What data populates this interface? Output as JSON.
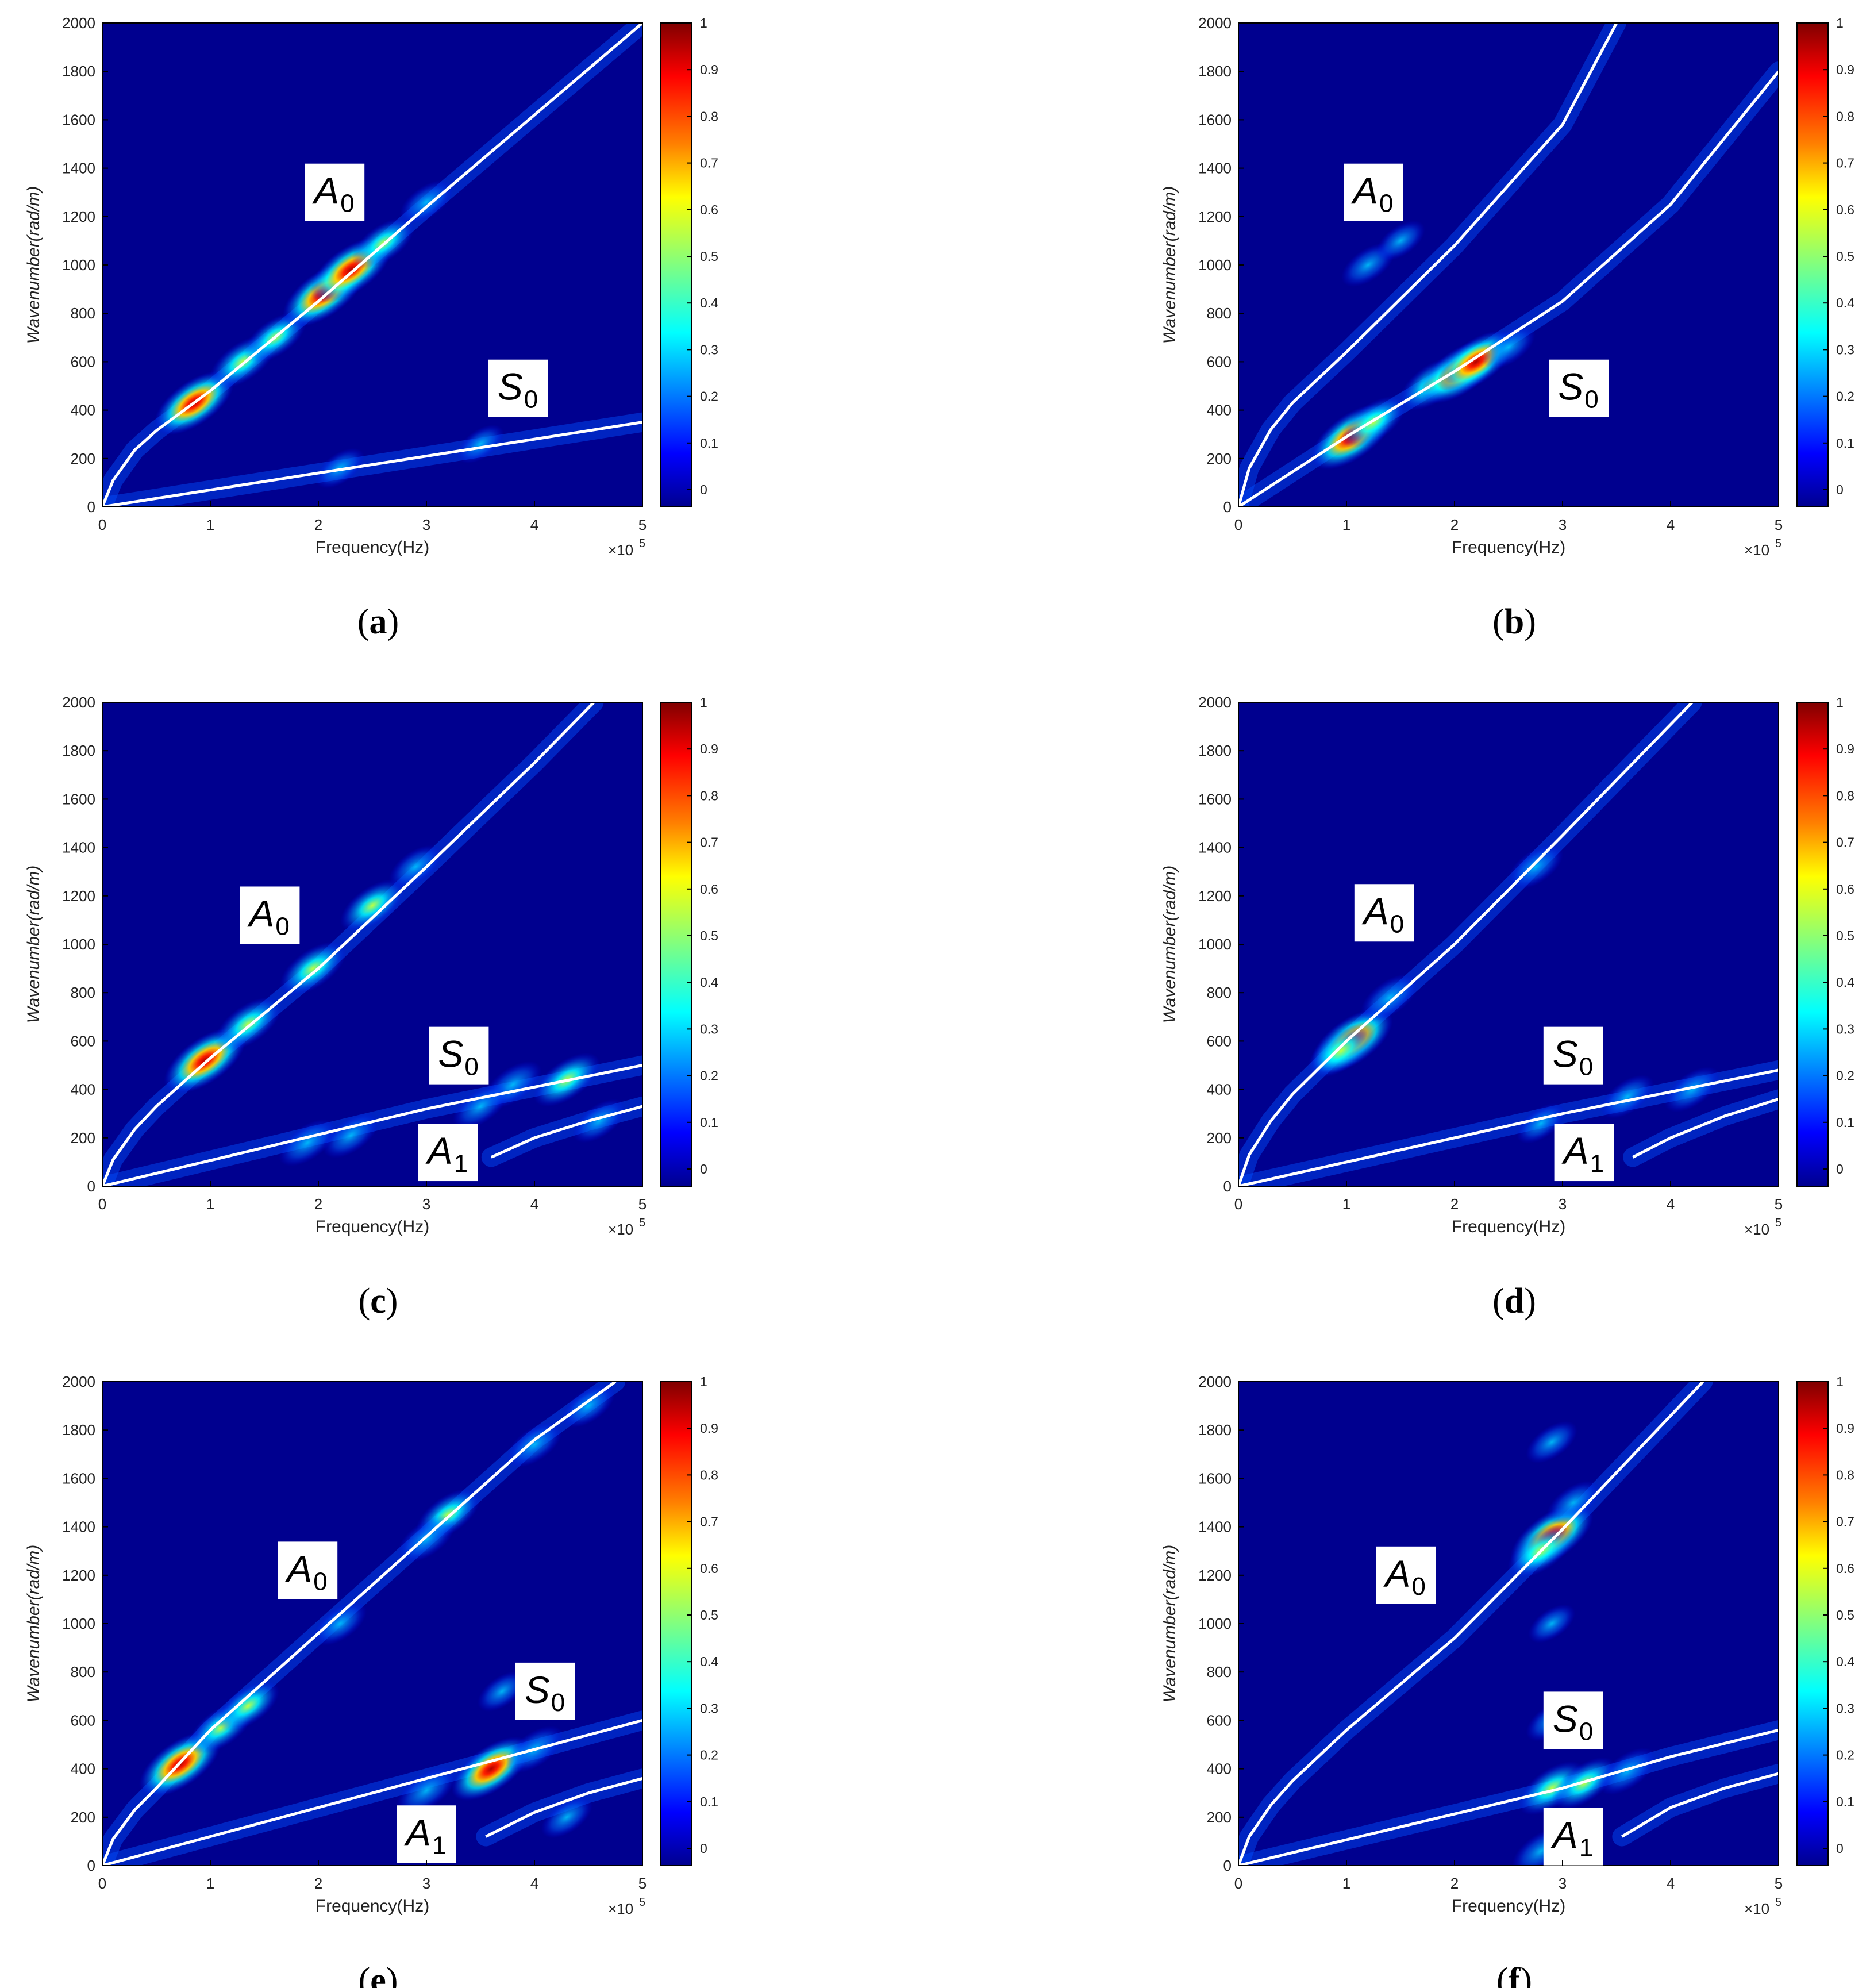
{
  "colors": {
    "background": "#ffffff",
    "plot_background": "#00008f",
    "curve": "#ffffff",
    "label_box": "#ffffff",
    "colormap": [
      "#00008f",
      "#0000ff",
      "#0080ff",
      "#00ffff",
      "#80ff80",
      "#ffff00",
      "#ff8000",
      "#ff0000",
      "#800000"
    ]
  },
  "common": {
    "xlabel": "Frequency(Hz)",
    "ylabel": "Wavenumber(rad/m)",
    "x_exponent_label": "×10",
    "x_exponent_power": "5",
    "x_ticks": [
      "0",
      "1",
      "2",
      "3",
      "4",
      "5"
    ],
    "y_ticks": [
      "0",
      "200",
      "400",
      "600",
      "800",
      "1000",
      "1200",
      "1400",
      "1600",
      "1800",
      "2000"
    ],
    "colorbar_ticks": [
      "0",
      "0.1",
      "0.2",
      "0.3",
      "0.4",
      "0.5",
      "0.6",
      "0.7",
      "0.8",
      "0.9",
      "1"
    ]
  },
  "chart_data": [
    {
      "type": "heatmap",
      "caption_letter": "a",
      "xlim": [
        0,
        5
      ],
      "ylim": [
        0,
        2000
      ],
      "curves": [
        {
          "mode": "A",
          "sub": "0",
          "x": [
            0,
            0.1,
            0.3,
            0.5,
            1,
            2,
            3,
            4,
            5
          ],
          "y": [
            0,
            110,
            235,
            315,
            480,
            850,
            1240,
            1620,
            2000
          ]
        },
        {
          "mode": "S",
          "sub": "0",
          "x": [
            0,
            5
          ],
          "y": [
            0,
            350
          ]
        }
      ],
      "labels": [
        {
          "mode": "A",
          "sub": "0",
          "x": 2.15,
          "y": 1300
        },
        {
          "mode": "S",
          "sub": "0",
          "x": 3.85,
          "y": 490
        }
      ],
      "hotspots": [
        {
          "x": 0.85,
          "y": 430,
          "v": 0.9
        },
        {
          "x": 1.3,
          "y": 600,
          "v": 0.6
        },
        {
          "x": 1.6,
          "y": 700,
          "v": 0.5
        },
        {
          "x": 2.05,
          "y": 880,
          "v": 0.95
        },
        {
          "x": 2.3,
          "y": 980,
          "v": 0.95
        },
        {
          "x": 2.6,
          "y": 1090,
          "v": 0.5
        },
        {
          "x": 3.0,
          "y": 1260,
          "v": 0.3
        },
        {
          "x": 2.2,
          "y": 160,
          "v": 0.2
        },
        {
          "x": 3.5,
          "y": 260,
          "v": 0.15
        }
      ]
    },
    {
      "type": "heatmap",
      "caption_letter": "b",
      "xlim": [
        0,
        5
      ],
      "ylim": [
        0,
        2000
      ],
      "curves": [
        {
          "mode": "A",
          "sub": "0",
          "x": [
            0,
            0.1,
            0.3,
            0.5,
            1,
            2,
            3,
            3.5
          ],
          "y": [
            0,
            160,
            320,
            430,
            640,
            1080,
            1580,
            2000
          ]
        },
        {
          "mode": "S",
          "sub": "0",
          "x": [
            0,
            1,
            2,
            3,
            4,
            5
          ],
          "y": [
            0,
            290,
            560,
            850,
            1250,
            1800
          ]
        }
      ],
      "labels": [
        {
          "mode": "A",
          "sub": "0",
          "x": 1.25,
          "y": 1300
        },
        {
          "mode": "S",
          "sub": "0",
          "x": 3.15,
          "y": 490
        }
      ],
      "hotspots": [
        {
          "x": 1.05,
          "y": 290,
          "v": 0.95
        },
        {
          "x": 1.25,
          "y": 350,
          "v": 0.55
        },
        {
          "x": 1.8,
          "y": 510,
          "v": 0.6
        },
        {
          "x": 2.05,
          "y": 560,
          "v": 0.9
        },
        {
          "x": 2.2,
          "y": 600,
          "v": 0.85
        },
        {
          "x": 2.5,
          "y": 660,
          "v": 0.3
        },
        {
          "x": 1.2,
          "y": 1000,
          "v": 0.3
        },
        {
          "x": 1.5,
          "y": 1100,
          "v": 0.2
        }
      ]
    },
    {
      "type": "heatmap",
      "caption_letter": "c",
      "xlim": [
        0,
        5
      ],
      "ylim": [
        0,
        2000
      ],
      "curves": [
        {
          "mode": "A",
          "sub": "0",
          "x": [
            0,
            0.1,
            0.3,
            0.5,
            1,
            2,
            3,
            4,
            4.55
          ],
          "y": [
            0,
            110,
            235,
            330,
            530,
            900,
            1320,
            1750,
            2000
          ]
        },
        {
          "mode": "S",
          "sub": "0",
          "x": [
            0,
            3,
            4,
            5
          ],
          "y": [
            0,
            320,
            410,
            500
          ]
        },
        {
          "mode": "A",
          "sub": "1",
          "x": [
            3.6,
            4.0,
            4.5,
            5.0
          ],
          "y": [
            120,
            200,
            270,
            330
          ]
        }
      ],
      "labels": [
        {
          "mode": "A",
          "sub": "0",
          "x": 1.55,
          "y": 1120
        },
        {
          "mode": "S",
          "sub": "0",
          "x": 3.3,
          "y": 540
        },
        {
          "mode": "A",
          "sub": "1",
          "x": 3.2,
          "y": 140
        }
      ],
      "hotspots": [
        {
          "x": 0.95,
          "y": 520,
          "v": 0.95
        },
        {
          "x": 1.35,
          "y": 670,
          "v": 0.6
        },
        {
          "x": 1.95,
          "y": 900,
          "v": 0.6
        },
        {
          "x": 2.5,
          "y": 1160,
          "v": 0.55
        },
        {
          "x": 2.9,
          "y": 1320,
          "v": 0.3
        },
        {
          "x": 4.3,
          "y": 440,
          "v": 0.6
        },
        {
          "x": 3.8,
          "y": 420,
          "v": 0.4
        },
        {
          "x": 1.9,
          "y": 180,
          "v": 0.4
        },
        {
          "x": 2.3,
          "y": 210,
          "v": 0.35
        },
        {
          "x": 4.6,
          "y": 270,
          "v": 0.3
        },
        {
          "x": 3.5,
          "y": 330,
          "v": 0.35
        }
      ]
    },
    {
      "type": "heatmap",
      "caption_letter": "d",
      "xlim": [
        0,
        5
      ],
      "ylim": [
        0,
        2000
      ],
      "curves": [
        {
          "mode": "A",
          "sub": "0",
          "x": [
            0,
            0.1,
            0.3,
            0.5,
            1,
            2,
            3,
            4.2
          ],
          "y": [
            0,
            130,
            270,
            380,
            600,
            1000,
            1450,
            2000
          ]
        },
        {
          "mode": "S",
          "sub": "0",
          "x": [
            0,
            3,
            4,
            5
          ],
          "y": [
            0,
            300,
            390,
            480
          ]
        },
        {
          "mode": "A",
          "sub": "1",
          "x": [
            3.65,
            4.0,
            4.5,
            5.0
          ],
          "y": [
            120,
            200,
            290,
            360
          ]
        }
      ],
      "labels": [
        {
          "mode": "A",
          "sub": "0",
          "x": 1.35,
          "y": 1130
        },
        {
          "mode": "S",
          "sub": "0",
          "x": 3.1,
          "y": 540
        },
        {
          "mode": "A",
          "sub": "1",
          "x": 3.2,
          "y": 140
        }
      ],
      "hotspots": [
        {
          "x": 1.05,
          "y": 600,
          "v": 0.95
        },
        {
          "x": 0.95,
          "y": 560,
          "v": 0.6
        },
        {
          "x": 1.4,
          "y": 780,
          "v": 0.4
        },
        {
          "x": 2.75,
          "y": 1320,
          "v": 0.35
        },
        {
          "x": 3.6,
          "y": 370,
          "v": 0.3
        },
        {
          "x": 4.2,
          "y": 400,
          "v": 0.35
        },
        {
          "x": 2.8,
          "y": 260,
          "v": 0.2
        }
      ]
    },
    {
      "type": "heatmap",
      "caption_letter": "e",
      "xlim": [
        0,
        5
      ],
      "ylim": [
        0,
        2000
      ],
      "curves": [
        {
          "mode": "A",
          "sub": "0",
          "x": [
            0,
            0.1,
            0.3,
            0.5,
            1,
            2,
            3,
            4,
            4.75
          ],
          "y": [
            0,
            110,
            230,
            320,
            560,
            960,
            1360,
            1760,
            2000
          ]
        },
        {
          "mode": "S",
          "sub": "0",
          "x": [
            0,
            3,
            4,
            5
          ],
          "y": [
            0,
            360,
            480,
            600
          ]
        },
        {
          "mode": "A",
          "sub": "1",
          "x": [
            3.55,
            4.0,
            4.5,
            5.0
          ],
          "y": [
            120,
            220,
            300,
            360
          ]
        }
      ],
      "labels": [
        {
          "mode": "A",
          "sub": "0",
          "x": 1.9,
          "y": 1220
        },
        {
          "mode": "S",
          "sub": "0",
          "x": 4.1,
          "y": 720
        },
        {
          "mode": "A",
          "sub": "1",
          "x": 3.0,
          "y": 130
        }
      ],
      "hotspots": [
        {
          "x": 0.72,
          "y": 420,
          "v": 0.95
        },
        {
          "x": 1.1,
          "y": 570,
          "v": 0.55
        },
        {
          "x": 1.35,
          "y": 660,
          "v": 0.5
        },
        {
          "x": 2.2,
          "y": 1000,
          "v": 0.3
        },
        {
          "x": 3.2,
          "y": 1450,
          "v": 0.55
        },
        {
          "x": 3.0,
          "y": 1350,
          "v": 0.4
        },
        {
          "x": 4.0,
          "y": 1740,
          "v": 0.35
        },
        {
          "x": 4.5,
          "y": 1900,
          "v": 0.3
        },
        {
          "x": 3.6,
          "y": 400,
          "v": 0.9
        },
        {
          "x": 3.0,
          "y": 310,
          "v": 0.45
        },
        {
          "x": 4.0,
          "y": 480,
          "v": 0.4
        },
        {
          "x": 4.3,
          "y": 200,
          "v": 0.25
        },
        {
          "x": 3.7,
          "y": 720,
          "v": 0.2
        }
      ]
    },
    {
      "type": "heatmap",
      "caption_letter": "f",
      "xlim": [
        0,
        5
      ],
      "ylim": [
        0,
        2000
      ],
      "curves": [
        {
          "mode": "A",
          "sub": "0",
          "x": [
            0,
            0.1,
            0.3,
            0.5,
            1,
            2,
            3,
            4.3
          ],
          "y": [
            0,
            120,
            250,
            350,
            560,
            940,
            1390,
            2000
          ]
        },
        {
          "mode": "S",
          "sub": "0",
          "x": [
            0,
            3,
            4,
            5
          ],
          "y": [
            0,
            320,
            450,
            560
          ]
        },
        {
          "mode": "A",
          "sub": "1",
          "x": [
            3.55,
            4.0,
            4.5,
            5.0
          ],
          "y": [
            120,
            240,
            320,
            380
          ]
        }
      ],
      "labels": [
        {
          "mode": "A",
          "sub": "0",
          "x": 1.55,
          "y": 1200
        },
        {
          "mode": "S",
          "sub": "0",
          "x": 3.1,
          "y": 600
        },
        {
          "mode": "A",
          "sub": "1",
          "x": 3.1,
          "y": 120
        }
      ],
      "hotspots": [
        {
          "x": 2.9,
          "y": 1360,
          "v": 0.98
        },
        {
          "x": 2.8,
          "y": 1300,
          "v": 0.6
        },
        {
          "x": 3.1,
          "y": 1500,
          "v": 0.3
        },
        {
          "x": 2.9,
          "y": 1750,
          "v": 0.25
        },
        {
          "x": 2.9,
          "y": 320,
          "v": 0.6
        },
        {
          "x": 3.2,
          "y": 340,
          "v": 0.55
        },
        {
          "x": 3.6,
          "y": 390,
          "v": 0.4
        },
        {
          "x": 2.8,
          "y": 60,
          "v": 0.4
        },
        {
          "x": 2.9,
          "y": 600,
          "v": 0.25
        },
        {
          "x": 2.9,
          "y": 1000,
          "v": 0.15
        }
      ]
    }
  ]
}
